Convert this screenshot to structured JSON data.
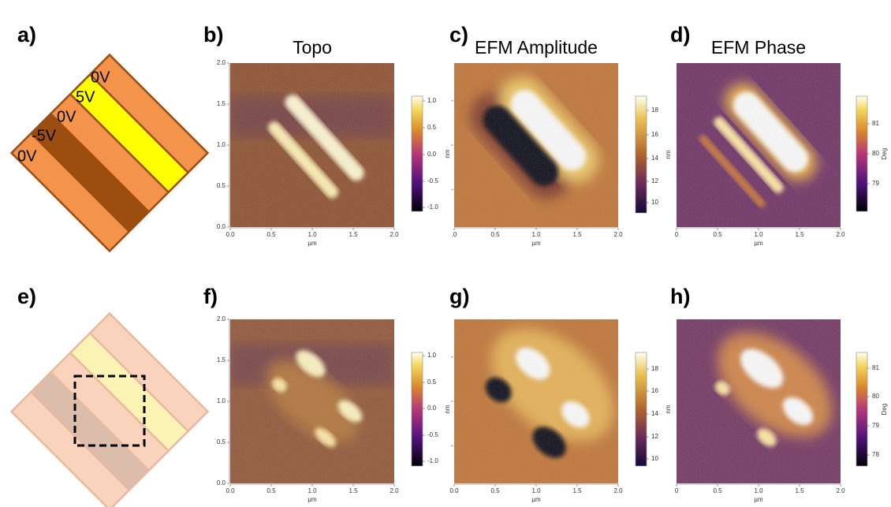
{
  "panels": [
    {
      "label": "a)",
      "voltages": [
        "0V",
        "5V",
        "0V",
        "-5V",
        "0V"
      ]
    },
    {
      "label": "b)",
      "title": "Topo",
      "yticks": [
        "2.0",
        "1.5",
        "1.0",
        "0.5",
        "0.0"
      ],
      "xticks": [
        "0.0",
        "0.5",
        "1.0",
        "1.5",
        "2.0"
      ],
      "xlabel": "µm",
      "colorbar": [
        "1.0",
        "0.5",
        "0.0",
        "-0.5",
        "-1.0"
      ],
      "colorbar_unit": "nm"
    },
    {
      "label": "c)",
      "title": "EFM Amplitude",
      "xticks": [
        ".0",
        "0.5",
        "1.0",
        "1.5",
        "2.0"
      ],
      "xlabel": "µm",
      "colorbar": [
        "18",
        "16",
        "14",
        "12",
        "10"
      ],
      "colorbar_unit": "nm"
    },
    {
      "label": "d)",
      "title": "EFM Phase",
      "xticks": [
        "0",
        "0.5",
        "1.0",
        "1.5",
        "2.0"
      ],
      "xlabel": "µm",
      "colorbar": [
        "81",
        "80",
        "79"
      ],
      "colorbar_unit": "Deg"
    },
    {
      "label": "e)"
    },
    {
      "label": "f)",
      "yticks": [
        "2.0",
        "1.5",
        "1.0",
        "0.5",
        "0.0"
      ],
      "xticks": [
        "0.0",
        "0.5",
        "1.0",
        "1.5",
        "2.0"
      ],
      "xlabel": "µm",
      "colorbar": [
        "1.0",
        "0.5",
        "0.0",
        "-0.5",
        "-1.0"
      ],
      "colorbar_unit": "nm"
    },
    {
      "label": "g)",
      "xticks": [
        "0.0",
        "0.5",
        "1.0",
        "1.5",
        "2.0"
      ],
      "xlabel": "µm",
      "colorbar": [
        "18",
        "16",
        "14",
        "12",
        "10"
      ],
      "colorbar_unit": "nm"
    },
    {
      "label": "h)",
      "xticks": [
        "0",
        "0.5",
        "1.0",
        "1.5",
        "2.0"
      ],
      "xlabel": "µm",
      "colorbar": [
        "81",
        "80",
        "79",
        "78"
      ],
      "colorbar_unit": "Deg"
    }
  ]
}
